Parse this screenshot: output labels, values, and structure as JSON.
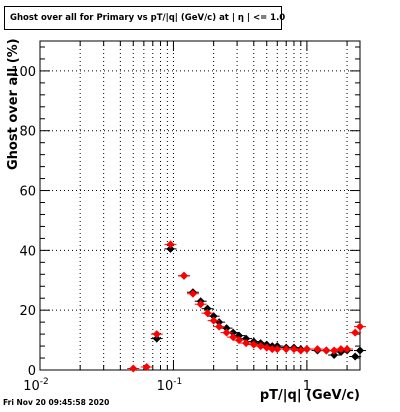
{
  "title": "Ghost over all for Primary vs pT/|q| (GeV/c) at |  η | <= 1.0",
  "timestamp": "Fri Nov 20 09:45:58 2020",
  "colors": {
    "series_black": "#000000",
    "series_red": "#ff0000",
    "grid": "#000000"
  },
  "chart_data": {
    "type": "scatter",
    "title": "Ghost over all for Primary vs pT/|q| (GeV/c) at |  η | <= 1.0",
    "xlabel": "pT/|q| (GeV/c)",
    "ylabel": "Ghost over all (%)",
    "xscale": "log",
    "xlim": [
      0.01,
      2.5
    ],
    "ylim": [
      0,
      110
    ],
    "grid": true,
    "x_ticks": [
      {
        "value": 0.01,
        "label": "10",
        "exp": "-2"
      },
      {
        "value": 0.1,
        "label": "10",
        "exp": "-1"
      },
      {
        "value": 1,
        "label": "1",
        "exp": ""
      }
    ],
    "y_ticks": [
      {
        "value": 0,
        "label": "0"
      },
      {
        "value": 20,
        "label": "20"
      },
      {
        "value": 40,
        "label": "40"
      },
      {
        "value": 60,
        "label": "60"
      },
      {
        "value": 80,
        "label": "80"
      },
      {
        "value": 100,
        "label": "100"
      }
    ],
    "series": [
      {
        "color": "#000000",
        "x": [
          0.075,
          0.095,
          0.12,
          0.14,
          0.16,
          0.18,
          0.2,
          0.22,
          0.25,
          0.28,
          0.31,
          0.35,
          0.4,
          0.45,
          0.5,
          0.55,
          0.6,
          0.7,
          0.8,
          0.9,
          1.0,
          1.2,
          1.4,
          1.6,
          1.8,
          2.0,
          2.3,
          2.5
        ],
        "y": [
          10.5,
          40.5,
          31.5,
          26,
          23,
          20.5,
          18,
          16,
          14,
          12.5,
          11.5,
          10.5,
          9.5,
          9,
          8.5,
          8,
          8,
          7.5,
          7.5,
          7,
          7,
          6.5,
          6.5,
          5,
          6,
          6.5,
          4.5,
          6.5
        ]
      },
      {
        "color": "#ff0000",
        "x": [
          0.05,
          0.063,
          0.075,
          0.095,
          0.12,
          0.14,
          0.16,
          0.18,
          0.2,
          0.22,
          0.25,
          0.28,
          0.31,
          0.35,
          0.4,
          0.45,
          0.5,
          0.55,
          0.6,
          0.7,
          0.8,
          0.9,
          1.0,
          1.2,
          1.4,
          1.6,
          1.8,
          2.0,
          2.3,
          2.5
        ],
        "y": [
          0.5,
          1,
          12,
          42,
          31.5,
          25.5,
          22,
          19,
          16.5,
          14.5,
          12.5,
          11,
          10,
          9,
          8.5,
          8,
          7.5,
          7,
          7,
          7,
          7,
          6.5,
          7,
          7,
          6.5,
          6.5,
          7,
          7,
          12.5,
          14.5
        ]
      }
    ]
  }
}
